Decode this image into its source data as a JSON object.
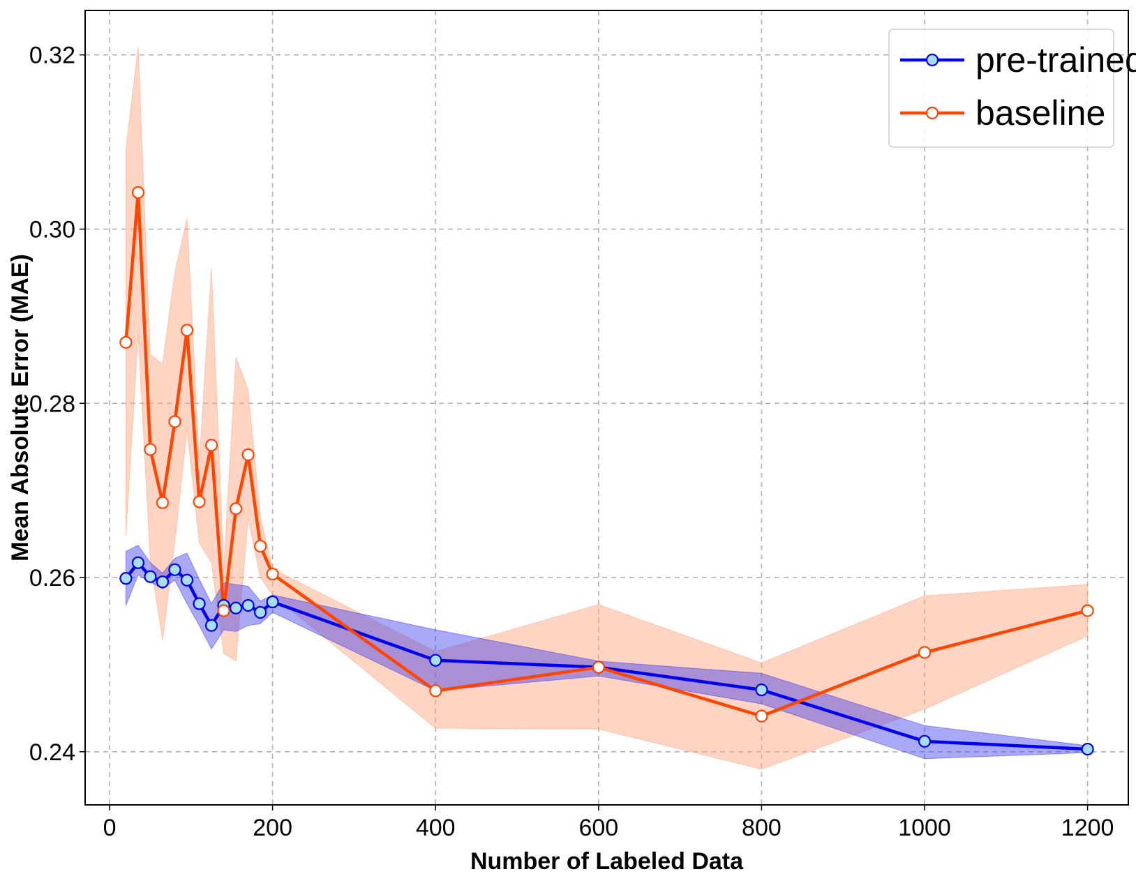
{
  "chart_data": {
    "type": "line",
    "xlabel": "Number of Labeled Data",
    "ylabel": "Mean Absolute Error (MAE)",
    "xlim": [
      -30,
      1250
    ],
    "ylim": [
      0.2339,
      0.3251
    ],
    "xticks": [
      0,
      200,
      400,
      600,
      800,
      1000,
      1200
    ],
    "yticks": [
      0.24,
      0.26,
      0.28,
      0.3,
      0.32
    ],
    "xtick_labels": [
      "0",
      "200",
      "400",
      "600",
      "800",
      "1000",
      "1200"
    ],
    "ytick_labels": [
      "0.24",
      "0.26",
      "0.28",
      "0.30",
      "0.32"
    ],
    "grid": true,
    "legend_position": "top-right",
    "series": [
      {
        "name": "pre-trained",
        "color": "#0000ee",
        "marker_fill": "#a8ddf0",
        "band_color": "#3333ee",
        "x": [
          20,
          35,
          50,
          65,
          80,
          95,
          110,
          125,
          140,
          155,
          170,
          185,
          200,
          400,
          600,
          800,
          1000,
          1200
        ],
        "y": [
          0.2599,
          0.2617,
          0.2601,
          0.2595,
          0.2609,
          0.2597,
          0.257,
          0.2545,
          0.2568,
          0.2565,
          0.2568,
          0.256,
          0.2572,
          0.2505,
          0.2497,
          0.2471,
          0.2412,
          0.2403
        ],
        "lower": [
          0.2568,
          0.2603,
          0.2595,
          0.2587,
          0.2597,
          0.257,
          0.2545,
          0.2518,
          0.254,
          0.2538,
          0.2545,
          0.2547,
          0.256,
          0.247,
          0.2487,
          0.2455,
          0.2392,
          0.2399
        ],
        "upper": [
          0.263,
          0.2637,
          0.2617,
          0.2605,
          0.2622,
          0.2628,
          0.2598,
          0.257,
          0.2594,
          0.2592,
          0.259,
          0.2573,
          0.258,
          0.254,
          0.2504,
          0.249,
          0.243,
          0.2407
        ]
      },
      {
        "name": "baseline",
        "color": "#ff4500",
        "marker_fill": "#ffffff",
        "band_color": "#ffa07a",
        "x": [
          20,
          35,
          50,
          65,
          80,
          95,
          110,
          125,
          140,
          155,
          170,
          185,
          200,
          400,
          600,
          800,
          1000,
          1200
        ],
        "y": [
          0.287,
          0.3042,
          0.2747,
          0.2686,
          0.2779,
          0.2884,
          0.2687,
          0.2752,
          0.2562,
          0.2679,
          0.2741,
          0.2636,
          0.2604,
          0.247,
          0.2497,
          0.2441,
          0.2514,
          0.2562
        ],
        "lower": [
          0.2648,
          0.288,
          0.262,
          0.2528,
          0.264,
          0.277,
          0.264,
          0.2617,
          0.2513,
          0.2504,
          0.2668,
          0.26,
          0.258,
          0.2427,
          0.2426,
          0.238,
          0.2449,
          0.2533
        ],
        "upper": [
          0.3092,
          0.3209,
          0.2856,
          0.2845,
          0.295,
          0.3012,
          0.2732,
          0.2955,
          0.261,
          0.2853,
          0.2815,
          0.267,
          0.261,
          0.2515,
          0.2569,
          0.2502,
          0.2579,
          0.2592
        ]
      }
    ]
  }
}
